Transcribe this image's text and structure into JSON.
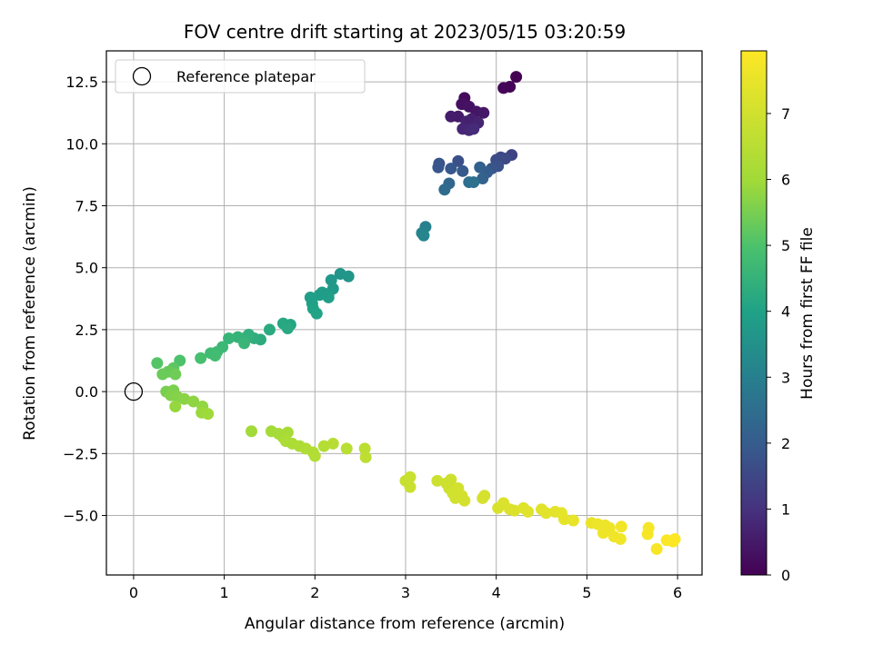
{
  "chart_data": {
    "type": "scatter",
    "title": "FOV centre drift starting at 2023/05/15 03:20:59",
    "xlabel": "Angular distance from reference (arcmin)",
    "ylabel": "Rotation from reference (arcmin)",
    "xlim": [
      -0.3,
      6.27
    ],
    "ylim": [
      -7.4,
      13.75
    ],
    "xticks": [
      0,
      1,
      2,
      3,
      4,
      5,
      6
    ],
    "xtick_labels": [
      "0",
      "1",
      "2",
      "3",
      "4",
      "5",
      "6"
    ],
    "yticks": [
      -5.0,
      -2.5,
      0.0,
      2.5,
      5.0,
      7.5,
      10.0,
      12.5
    ],
    "ytick_labels": [
      "−5.0",
      "−2.5",
      "0.0",
      "2.5",
      "5.0",
      "7.5",
      "10.0",
      "12.5"
    ],
    "grid": true,
    "legend": {
      "placement": "top-left",
      "entries": [
        "Reference platepar"
      ]
    },
    "reference_point": {
      "x": 0,
      "y": 0
    },
    "colorbar": {
      "label": "Hours from first FF file",
      "colormap": "viridis",
      "range": [
        0,
        7.95
      ],
      "ticks": [
        0,
        1,
        2,
        3,
        4,
        5,
        6,
        7
      ],
      "tick_labels": [
        "0",
        "1",
        "2",
        "3",
        "4",
        "5",
        "6",
        "7"
      ]
    },
    "points": [
      {
        "x": 4.22,
        "y": 12.7,
        "t": 0.0
      },
      {
        "x": 4.15,
        "y": 12.3,
        "t": 0.05
      },
      {
        "x": 4.08,
        "y": 12.25,
        "t": 0.1
      },
      {
        "x": 3.65,
        "y": 11.85,
        "t": 0.2
      },
      {
        "x": 3.62,
        "y": 11.6,
        "t": 0.3
      },
      {
        "x": 3.7,
        "y": 11.5,
        "t": 0.35
      },
      {
        "x": 3.78,
        "y": 11.3,
        "t": 0.4
      },
      {
        "x": 3.86,
        "y": 11.25,
        "t": 0.45
      },
      {
        "x": 3.58,
        "y": 11.1,
        "t": 0.5
      },
      {
        "x": 3.5,
        "y": 11.1,
        "t": 0.55
      },
      {
        "x": 3.73,
        "y": 11.0,
        "t": 0.6
      },
      {
        "x": 3.67,
        "y": 10.9,
        "t": 0.65
      },
      {
        "x": 3.8,
        "y": 10.85,
        "t": 0.7
      },
      {
        "x": 3.63,
        "y": 10.6,
        "t": 0.75
      },
      {
        "x": 3.7,
        "y": 10.55,
        "t": 0.8
      },
      {
        "x": 3.75,
        "y": 10.6,
        "t": 0.85
      },
      {
        "x": 4.17,
        "y": 9.55,
        "t": 1.4
      },
      {
        "x": 4.05,
        "y": 9.45,
        "t": 1.5
      },
      {
        "x": 4.0,
        "y": 9.35,
        "t": 1.6
      },
      {
        "x": 4.1,
        "y": 9.4,
        "t": 1.55
      },
      {
        "x": 3.58,
        "y": 9.3,
        "t": 1.7
      },
      {
        "x": 3.37,
        "y": 9.2,
        "t": 1.8
      },
      {
        "x": 3.36,
        "y": 9.05,
        "t": 1.85
      },
      {
        "x": 3.5,
        "y": 9.0,
        "t": 1.9
      },
      {
        "x": 3.63,
        "y": 8.9,
        "t": 1.95
      },
      {
        "x": 4.02,
        "y": 9.1,
        "t": 1.75
      },
      {
        "x": 3.95,
        "y": 9.0,
        "t": 1.8
      },
      {
        "x": 3.9,
        "y": 8.85,
        "t": 2.0
      },
      {
        "x": 3.82,
        "y": 9.05,
        "t": 2.1
      },
      {
        "x": 3.85,
        "y": 8.6,
        "t": 2.2
      },
      {
        "x": 3.48,
        "y": 8.4,
        "t": 2.3
      },
      {
        "x": 3.43,
        "y": 8.15,
        "t": 2.4
      },
      {
        "x": 3.7,
        "y": 8.45,
        "t": 2.5
      },
      {
        "x": 3.75,
        "y": 8.45,
        "t": 2.55
      },
      {
        "x": 3.22,
        "y": 6.65,
        "t": 3.0
      },
      {
        "x": 3.18,
        "y": 6.4,
        "t": 3.1
      },
      {
        "x": 3.2,
        "y": 6.3,
        "t": 3.15
      },
      {
        "x": 2.28,
        "y": 4.75,
        "t": 3.6
      },
      {
        "x": 2.37,
        "y": 4.65,
        "t": 3.65
      },
      {
        "x": 2.18,
        "y": 4.5,
        "t": 3.7
      },
      {
        "x": 2.2,
        "y": 4.15,
        "t": 3.75
      },
      {
        "x": 2.15,
        "y": 3.95,
        "t": 3.8
      },
      {
        "x": 2.08,
        "y": 4.0,
        "t": 3.85
      },
      {
        "x": 2.05,
        "y": 3.9,
        "t": 3.85
      },
      {
        "x": 1.95,
        "y": 3.8,
        "t": 3.9
      },
      {
        "x": 2.15,
        "y": 3.8,
        "t": 3.9
      },
      {
        "x": 1.97,
        "y": 3.55,
        "t": 3.95
      },
      {
        "x": 1.98,
        "y": 3.35,
        "t": 4.0
      },
      {
        "x": 2.02,
        "y": 3.15,
        "t": 4.05
      },
      {
        "x": 1.73,
        "y": 2.7,
        "t": 4.1
      },
      {
        "x": 1.65,
        "y": 2.75,
        "t": 4.15
      },
      {
        "x": 1.7,
        "y": 2.55,
        "t": 4.2
      },
      {
        "x": 1.5,
        "y": 2.5,
        "t": 4.25
      },
      {
        "x": 1.4,
        "y": 2.1,
        "t": 4.3
      },
      {
        "x": 1.33,
        "y": 2.15,
        "t": 4.35
      },
      {
        "x": 1.27,
        "y": 2.3,
        "t": 4.4
      },
      {
        "x": 1.22,
        "y": 2.15,
        "t": 4.45
      },
      {
        "x": 1.15,
        "y": 2.2,
        "t": 4.5
      },
      {
        "x": 1.05,
        "y": 2.15,
        "t": 4.55
      },
      {
        "x": 1.22,
        "y": 1.95,
        "t": 4.6
      },
      {
        "x": 0.98,
        "y": 1.8,
        "t": 4.65
      },
      {
        "x": 0.92,
        "y": 1.6,
        "t": 4.7
      },
      {
        "x": 0.85,
        "y": 1.55,
        "t": 4.75
      },
      {
        "x": 0.9,
        "y": 1.45,
        "t": 4.8
      },
      {
        "x": 0.74,
        "y": 1.35,
        "t": 4.9
      },
      {
        "x": 0.51,
        "y": 1.25,
        "t": 5.0
      },
      {
        "x": 0.26,
        "y": 1.15,
        "t": 5.1
      },
      {
        "x": 0.44,
        "y": 0.95,
        "t": 5.2
      },
      {
        "x": 0.38,
        "y": 0.8,
        "t": 5.3
      },
      {
        "x": 0.32,
        "y": 0.7,
        "t": 5.35
      },
      {
        "x": 0.46,
        "y": 0.7,
        "t": 5.4
      },
      {
        "x": 0.36,
        "y": 0.0,
        "t": 5.5
      },
      {
        "x": 0.44,
        "y": 0.05,
        "t": 5.55
      },
      {
        "x": 0.41,
        "y": -0.15,
        "t": 5.6
      },
      {
        "x": 0.48,
        "y": -0.2,
        "t": 5.65
      },
      {
        "x": 0.56,
        "y": -0.3,
        "t": 5.7
      },
      {
        "x": 0.66,
        "y": -0.4,
        "t": 5.75
      },
      {
        "x": 0.76,
        "y": -0.6,
        "t": 5.8
      },
      {
        "x": 0.46,
        "y": -0.6,
        "t": 5.85
      },
      {
        "x": 0.75,
        "y": -0.85,
        "t": 5.9
      },
      {
        "x": 0.82,
        "y": -0.9,
        "t": 5.95
      },
      {
        "x": 1.3,
        "y": -1.6,
        "t": 6.0
      },
      {
        "x": 1.52,
        "y": -1.6,
        "t": 6.05
      },
      {
        "x": 1.6,
        "y": -1.7,
        "t": 6.1
      },
      {
        "x": 1.7,
        "y": -1.65,
        "t": 6.12
      },
      {
        "x": 1.65,
        "y": -1.85,
        "t": 6.15
      },
      {
        "x": 1.68,
        "y": -2.0,
        "t": 6.2
      },
      {
        "x": 1.75,
        "y": -2.1,
        "t": 6.22
      },
      {
        "x": 1.83,
        "y": -2.2,
        "t": 6.25
      },
      {
        "x": 1.9,
        "y": -2.3,
        "t": 6.3
      },
      {
        "x": 1.98,
        "y": -2.45,
        "t": 6.32
      },
      {
        "x": 2.0,
        "y": -2.6,
        "t": 6.35
      },
      {
        "x": 2.1,
        "y": -2.2,
        "t": 6.4
      },
      {
        "x": 2.2,
        "y": -2.1,
        "t": 6.45
      },
      {
        "x": 2.35,
        "y": -2.3,
        "t": 6.5
      },
      {
        "x": 2.55,
        "y": -2.3,
        "t": 6.55
      },
      {
        "x": 2.56,
        "y": -2.65,
        "t": 6.6
      },
      {
        "x": 3.0,
        "y": -3.6,
        "t": 6.8
      },
      {
        "x": 3.05,
        "y": -3.45,
        "t": 6.82
      },
      {
        "x": 3.05,
        "y": -3.85,
        "t": 6.85
      },
      {
        "x": 3.35,
        "y": -3.6,
        "t": 6.9
      },
      {
        "x": 3.45,
        "y": -3.7,
        "t": 6.92
      },
      {
        "x": 3.48,
        "y": -3.9,
        "t": 6.95
      },
      {
        "x": 3.5,
        "y": -3.55,
        "t": 6.95
      },
      {
        "x": 3.52,
        "y": -4.1,
        "t": 7.0
      },
      {
        "x": 3.55,
        "y": -4.3,
        "t": 7.0
      },
      {
        "x": 3.58,
        "y": -3.9,
        "t": 7.02
      },
      {
        "x": 3.62,
        "y": -4.2,
        "t": 7.05
      },
      {
        "x": 3.65,
        "y": -4.4,
        "t": 7.05
      },
      {
        "x": 3.85,
        "y": -4.3,
        "t": 7.1
      },
      {
        "x": 3.87,
        "y": -4.2,
        "t": 7.1
      },
      {
        "x": 4.02,
        "y": -4.7,
        "t": 7.15
      },
      {
        "x": 4.08,
        "y": -4.5,
        "t": 7.2
      },
      {
        "x": 4.15,
        "y": -4.75,
        "t": 7.22
      },
      {
        "x": 4.2,
        "y": -4.8,
        "t": 7.25
      },
      {
        "x": 4.3,
        "y": -4.7,
        "t": 7.28
      },
      {
        "x": 4.35,
        "y": -4.85,
        "t": 7.3
      },
      {
        "x": 4.5,
        "y": -4.75,
        "t": 7.35
      },
      {
        "x": 4.55,
        "y": -4.9,
        "t": 7.38
      },
      {
        "x": 4.65,
        "y": -4.85,
        "t": 7.4
      },
      {
        "x": 4.72,
        "y": -4.9,
        "t": 7.42
      },
      {
        "x": 4.75,
        "y": -5.15,
        "t": 7.45
      },
      {
        "x": 4.85,
        "y": -5.2,
        "t": 7.48
      },
      {
        "x": 5.05,
        "y": -5.3,
        "t": 7.55
      },
      {
        "x": 5.12,
        "y": -5.35,
        "t": 7.58
      },
      {
        "x": 5.2,
        "y": -5.4,
        "t": 7.6
      },
      {
        "x": 5.25,
        "y": -5.5,
        "t": 7.62
      },
      {
        "x": 5.18,
        "y": -5.7,
        "t": 7.65
      },
      {
        "x": 5.3,
        "y": -5.85,
        "t": 7.68
      },
      {
        "x": 5.37,
        "y": -5.95,
        "t": 7.7
      },
      {
        "x": 5.38,
        "y": -5.45,
        "t": 7.72
      },
      {
        "x": 5.68,
        "y": -5.5,
        "t": 7.8
      },
      {
        "x": 5.67,
        "y": -5.75,
        "t": 7.82
      },
      {
        "x": 5.77,
        "y": -6.35,
        "t": 7.85
      },
      {
        "x": 5.88,
        "y": -6.0,
        "t": 7.9
      },
      {
        "x": 5.95,
        "y": -6.05,
        "t": 7.92
      },
      {
        "x": 5.97,
        "y": -5.95,
        "t": 7.95
      }
    ]
  }
}
